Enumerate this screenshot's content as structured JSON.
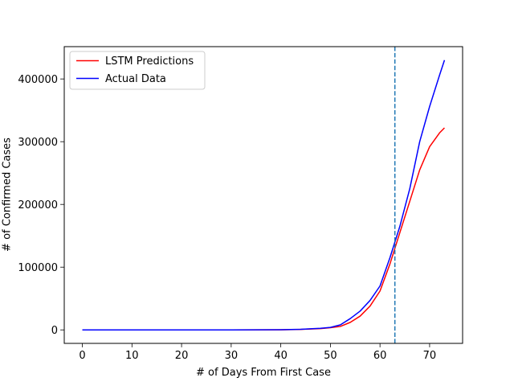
{
  "chart_data": {
    "type": "line",
    "xlabel": "# of Days From First Case",
    "ylabel": "# of Confirmed Cases",
    "xlim": [
      -3.65,
      76.65
    ],
    "ylim": [
      -21500,
      451500
    ],
    "xticks": [
      0,
      10,
      20,
      30,
      40,
      50,
      60,
      70
    ],
    "yticks": [
      0,
      100000,
      200000,
      300000,
      400000
    ],
    "grid": false,
    "legend_position": "top-left",
    "vline": {
      "x": 63,
      "style": "dashed",
      "color": "#1f77b4"
    },
    "series": [
      {
        "name": "LSTM Predictions",
        "color": "#ff0000",
        "x": [
          0,
          10,
          20,
          30,
          40,
          44,
          48,
          50,
          52,
          54,
          56,
          58,
          60,
          62,
          63,
          64,
          66,
          68,
          70,
          72,
          73
        ],
        "y": [
          0,
          0,
          0,
          0,
          200,
          800,
          2000,
          3500,
          5500,
          12000,
          22000,
          38000,
          62000,
          105000,
          130000,
          155000,
          205000,
          255000,
          292000,
          314000,
          322000
        ]
      },
      {
        "name": "Actual Data",
        "color": "#0000ff",
        "x": [
          0,
          10,
          20,
          30,
          40,
          44,
          48,
          50,
          52,
          54,
          56,
          58,
          60,
          62,
          63,
          64,
          66,
          68,
          70,
          72,
          73
        ],
        "y": [
          0,
          0,
          0,
          0,
          300,
          1000,
          2500,
          4000,
          8000,
          18000,
          30000,
          47000,
          70000,
          115000,
          140000,
          165000,
          225000,
          300000,
          356000,
          406000,
          430000
        ]
      }
    ]
  }
}
